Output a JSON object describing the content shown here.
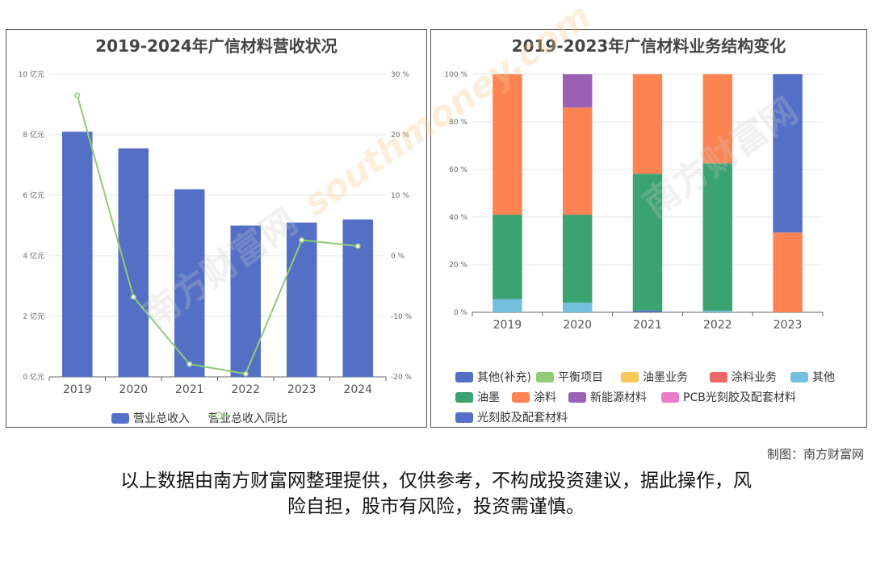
{
  "watermark": {
    "brand": "南方财富网",
    "domain": "southmoney.com"
  },
  "credit": "制图：南方财富网",
  "disclaimer_lines": [
    "以上数据由南方财富网整理提供，仅供参考，不构成投资建议，据此操作，风",
    "险自担，股市有风险，投资需谨慎。"
  ],
  "chart_data": [
    {
      "type": "bar",
      "title": "2019-2024年广信材料营收状况",
      "categories": [
        "2019",
        "2020",
        "2021",
        "2022",
        "2023",
        "2024"
      ],
      "series": [
        {
          "name": "营业总收入",
          "kind": "bar",
          "axis": "left",
          "color": "#5470c6",
          "values": [
            8.1,
            7.55,
            6.2,
            5.0,
            5.1,
            5.2
          ]
        },
        {
          "name": "营业总收入同比",
          "kind": "line",
          "axis": "right",
          "color": "#91cc75",
          "values": [
            26.5,
            -6.8,
            -17.9,
            -19.5,
            2.6,
            1.6
          ]
        }
      ],
      "y_left": {
        "min": 0,
        "max": 10,
        "step": 2,
        "unit": "亿元",
        "tick_labels": [
          "0 亿元",
          "2 亿元",
          "4 亿元",
          "6 亿元",
          "8 亿元",
          "10 亿元"
        ]
      },
      "y_right": {
        "min": -20,
        "max": 30,
        "step": 10,
        "unit": "%",
        "tick_labels": [
          "-20 %",
          "-10 %",
          "0 %",
          "10 %",
          "20 %",
          "30 %"
        ]
      },
      "grid": true,
      "legend_position": "bottom"
    },
    {
      "type": "bar",
      "stacked": true,
      "title": "2019-2023年广信材料业务结构变化",
      "categories": [
        "2019",
        "2020",
        "2021",
        "2022",
        "2023"
      ],
      "y": {
        "min": 0,
        "max": 100,
        "step": 20,
        "tick_labels": [
          "0 %",
          "20 %",
          "40 %",
          "60 %",
          "80 %",
          "100 %"
        ]
      },
      "series": [
        {
          "name": "其他(补充)",
          "color": "#5470c6",
          "values": [
            0,
            0,
            0.7,
            0,
            0
          ]
        },
        {
          "name": "平衡项目",
          "color": "#91cc75",
          "values": [
            0,
            0,
            0,
            0,
            0
          ]
        },
        {
          "name": "油墨业务",
          "color": "#fac858",
          "values": [
            0,
            0,
            0,
            0,
            0
          ]
        },
        {
          "name": "涂料业务",
          "color": "#ee6666",
          "values": [
            0,
            0,
            0,
            0,
            0
          ]
        },
        {
          "name": "其他",
          "color": "#73c0de",
          "values": [
            5.5,
            4.0,
            0,
            0.6,
            0
          ]
        },
        {
          "name": "油墨",
          "color": "#3ba272",
          "values": [
            35.5,
            37.0,
            57.5,
            62.0,
            0
          ]
        },
        {
          "name": "涂料",
          "color": "#fc8452",
          "values": [
            59.0,
            45.0,
            41.8,
            37.4,
            33.5
          ]
        },
        {
          "name": "新能源材料",
          "color": "#9a60b4",
          "values": [
            0,
            14.0,
            0,
            0,
            0
          ]
        },
        {
          "name": "PCB光刻胶及配套材料",
          "color": "#ea7ccc",
          "values": [
            0,
            0,
            0,
            0,
            0
          ]
        },
        {
          "name": "光刻胶及配套材料",
          "color": "#5470c6",
          "values": [
            0,
            0,
            0,
            0,
            66.5
          ]
        }
      ],
      "grid": true,
      "legend_position": "bottom"
    }
  ]
}
